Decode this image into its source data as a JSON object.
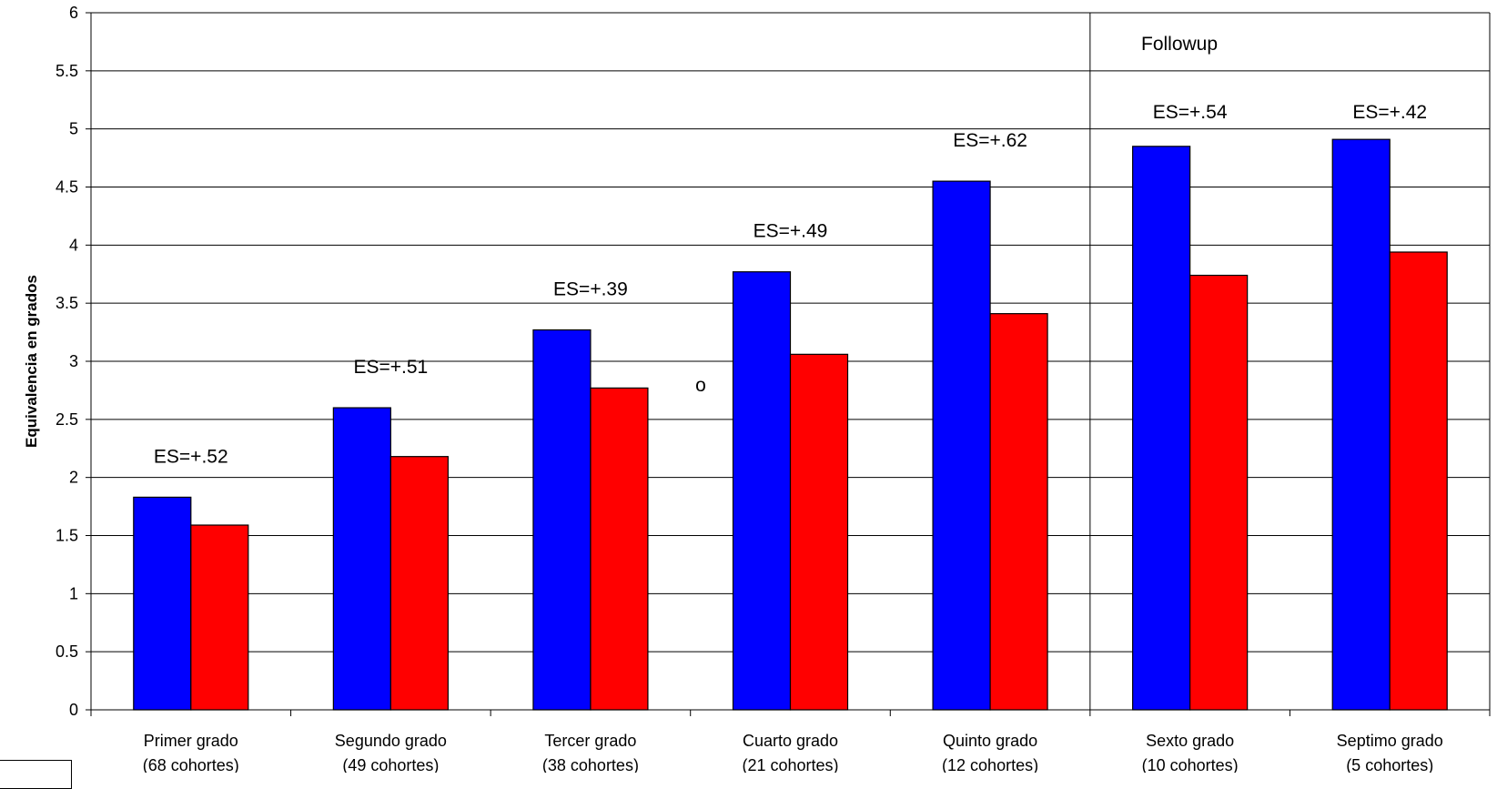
{
  "chart_data": {
    "type": "bar",
    "ylabel": "Equivalencia en grados",
    "ylim": [
      0,
      6
    ],
    "yticks": [
      "0",
      "0.5",
      "1",
      "1.5",
      "2",
      "2.5",
      "3",
      "3.5",
      "4",
      "4.5",
      "5",
      "5.5",
      "6"
    ],
    "grid": true,
    "categories": [
      {
        "name": "Primer grado",
        "sub": "(68 cohortes)"
      },
      {
        "name": "Segundo grado",
        "sub": "(49 cohortes)"
      },
      {
        "name": "Tercer grado",
        "sub": "(38 cohortes)"
      },
      {
        "name": "Cuarto grado",
        "sub": "(21 cohortes)"
      },
      {
        "name": "Quinto grado",
        "sub": "(12 cohortes)"
      },
      {
        "name": "Sexto grado",
        "sub": "(10 cohortes)"
      },
      {
        "name": "Septimo grado",
        "sub": "(5 cohortes)"
      }
    ],
    "series": [
      {
        "values": [
          1.83,
          2.6,
          3.27,
          3.77,
          4.55,
          4.85,
          4.91
        ],
        "color": "#0000ff"
      },
      {
        "values": [
          1.59,
          2.18,
          2.77,
          3.06,
          3.41,
          3.74,
          3.94
        ],
        "color": "#ff0000"
      }
    ],
    "effect_sizes": [
      "ES=+.52",
      "ES=+.51",
      "ES=+.39",
      "ES=+.49",
      "ES=+.62",
      "ES=+.54",
      "ES=+.42"
    ],
    "followup_label": "Followup",
    "stray_label": "o"
  }
}
